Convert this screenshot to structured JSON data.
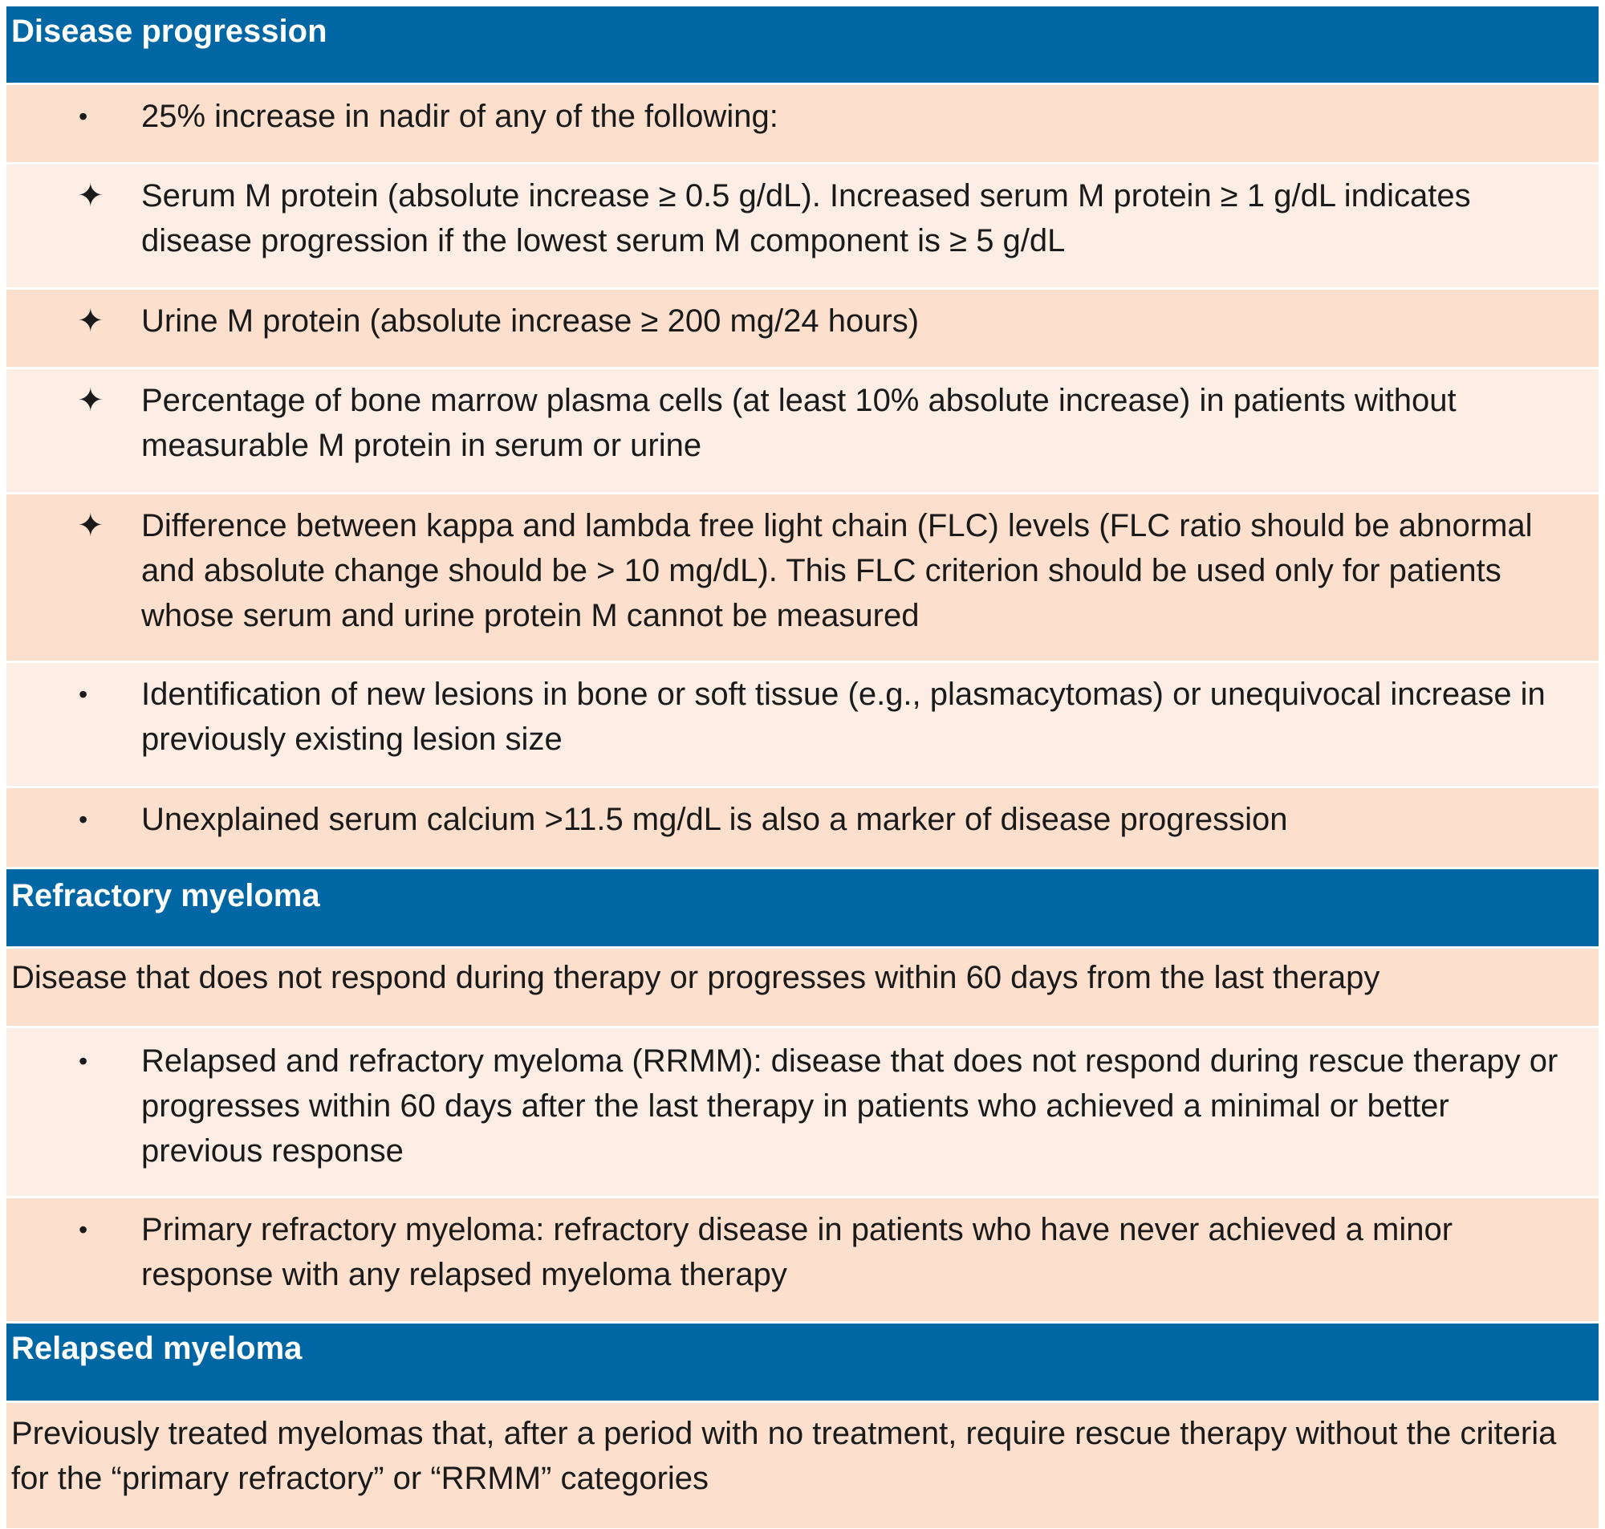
{
  "sections": [
    {
      "heading": "Disease progression",
      "rows": [
        {
          "marker": "•",
          "text": "25% increase in nadir of any of the following:"
        },
        {
          "marker": "✦",
          "text": "Serum M protein (absolute increase ≥ 0.5 g/dL). Increased serum M protein ≥ 1 g/dL indicates disease progression if the lowest serum M component is ≥ 5 g/dL"
        },
        {
          "marker": "✦",
          "text": "Urine M protein (absolute increase ≥ 200 mg/24 hours)"
        },
        {
          "marker": "✦",
          "text": "Percentage of bone marrow plasma cells (at least 10% absolute increase) in patients without measurable M protein in serum or urine"
        },
        {
          "marker": "✦",
          "text": "Difference between kappa and lambda free light chain (FLC) levels (FLC ratio should be abnormal and absolute change should be > 10 mg/dL). This FLC criterion should be used only for patients whose serum and urine protein M cannot be measured"
        },
        {
          "marker": "•",
          "text": "Identification of new lesions in bone or soft tissue (e.g., plasmacytomas) or unequivocal increase in previously existing lesion size"
        },
        {
          "marker": "•",
          "text": "Unexplained serum calcium >11.5 mg/dL is also a marker of disease progression"
        }
      ]
    },
    {
      "heading": "Refractory myeloma",
      "intro": "Disease that does not respond during therapy or progresses within 60 days from the last therapy",
      "rows": [
        {
          "marker": "•",
          "text": "Relapsed and refractory myeloma (RRMM): disease that does not respond during rescue therapy or progresses within 60 days after the last therapy in patients who achieved a minimal or better previous response"
        },
        {
          "marker": "•",
          "text": "Primary refractory myeloma: refractory disease in patients who have never achieved a minor response with any relapsed myeloma therapy"
        }
      ]
    },
    {
      "heading": "Relapsed myeloma",
      "intro": "Previously treated myelomas that, after a period with no treatment, require rescue therapy without the criteria for the “primary refractory” or “RRMM” categories"
    }
  ]
}
